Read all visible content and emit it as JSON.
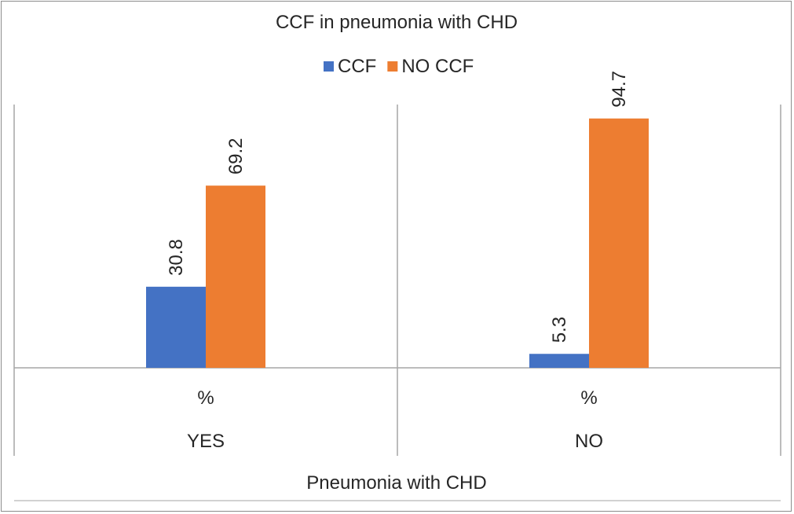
{
  "chart_data": {
    "type": "bar",
    "title": "CCF in pneumonia with CHD",
    "xlabel": "Pneumonia with CHD",
    "ylabel": "",
    "group_title": "",
    "categories": [
      {
        "group": "YES",
        "sub": "%"
      },
      {
        "group": "NO",
        "sub": "%"
      }
    ],
    "series": [
      {
        "name": "CCF",
        "color": "#4472c4",
        "values": [
          30.8,
          5.3
        ]
      },
      {
        "name": "NO CCF",
        "color": "#ed7d31",
        "values": [
          69.2,
          94.7
        ]
      }
    ],
    "ylim": [
      0,
      100
    ],
    "grid": false,
    "legend_position": "top"
  }
}
